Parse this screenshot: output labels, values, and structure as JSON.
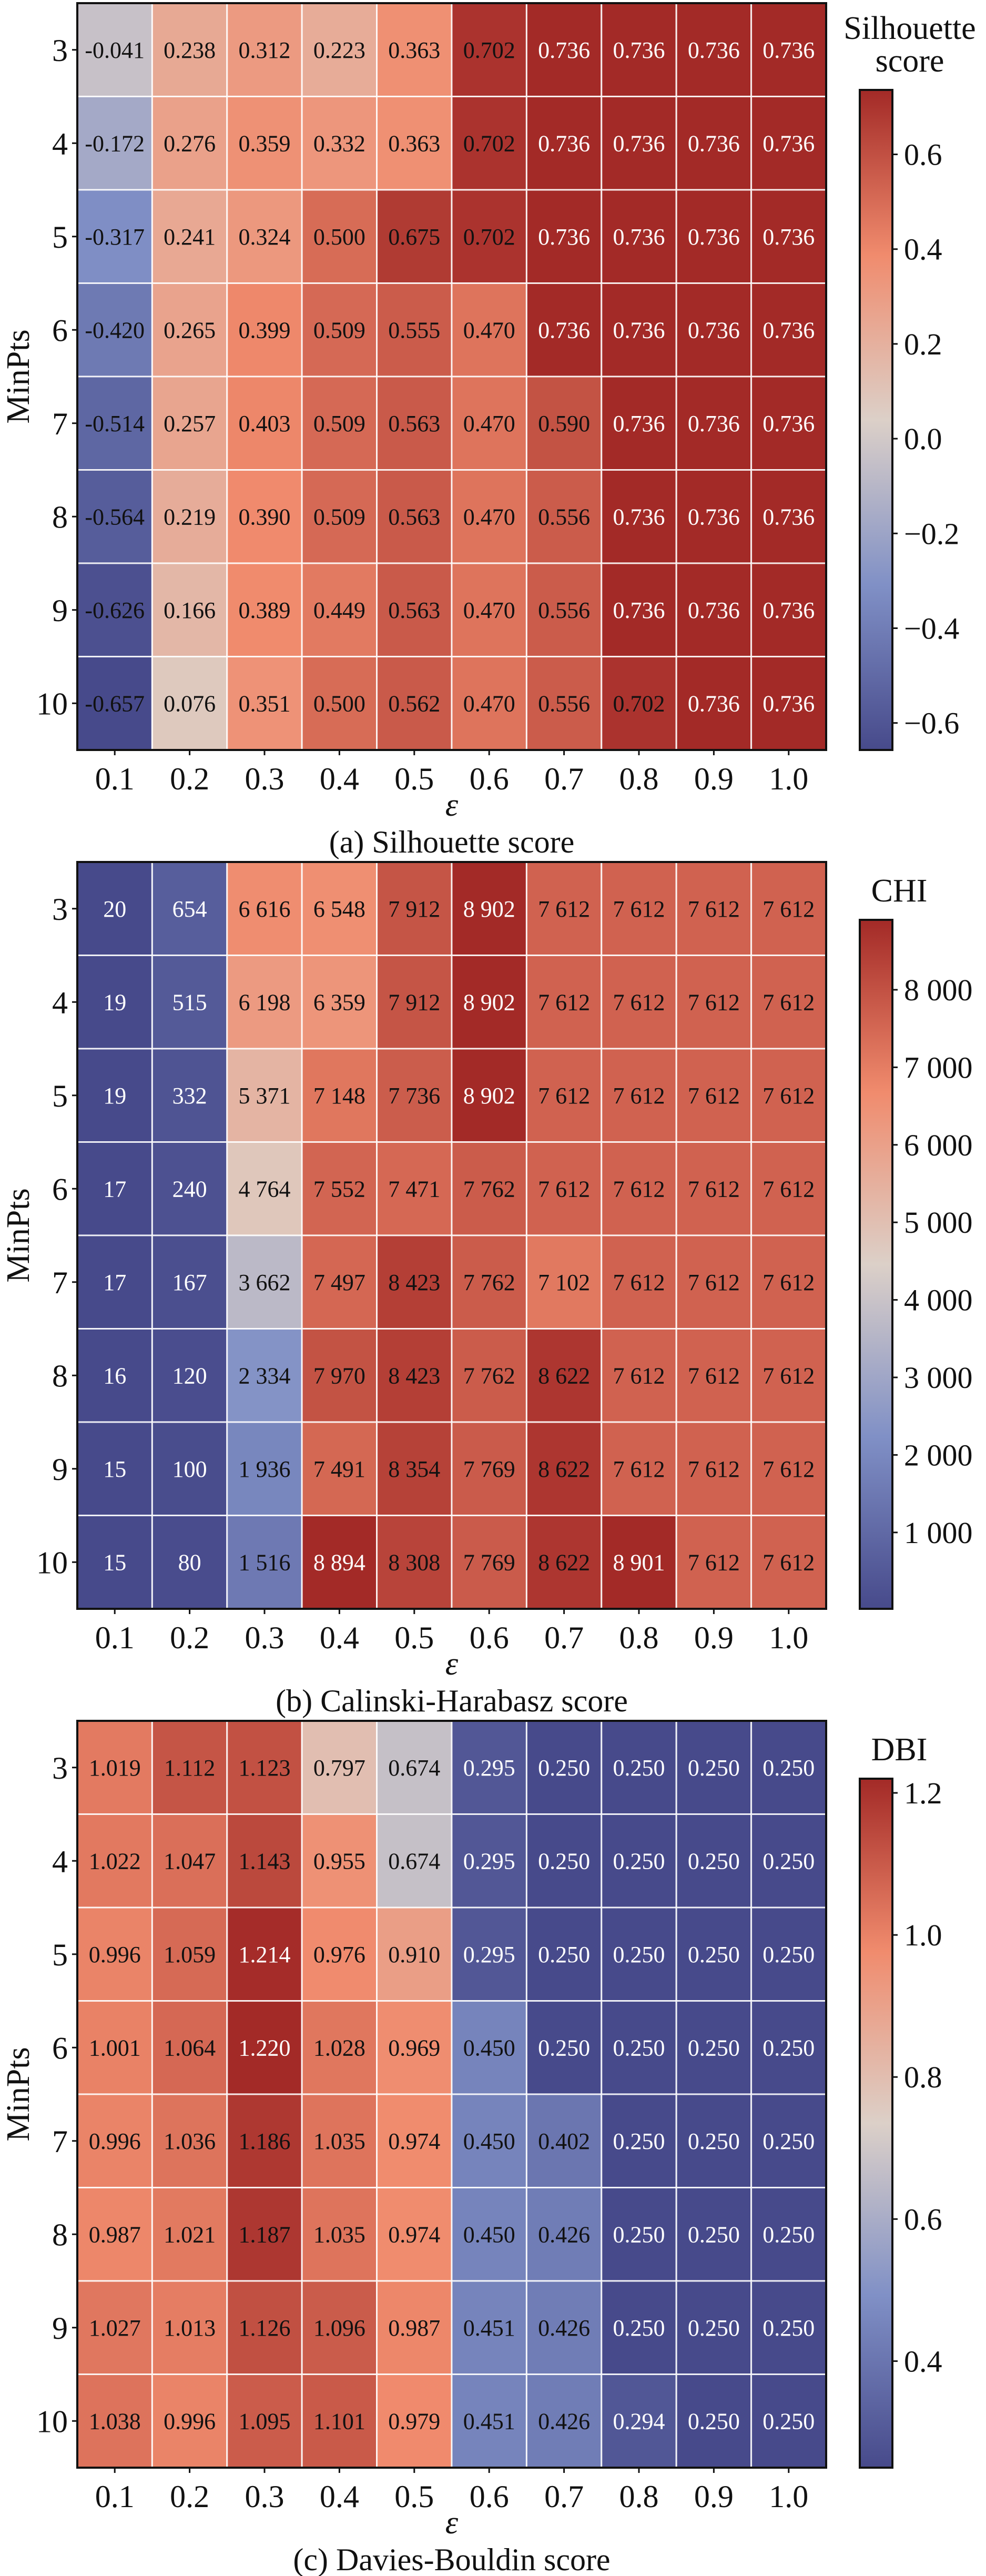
{
  "chart_data": [
    {
      "type": "heatmap",
      "caption": "(a) Silhouette score",
      "xlabel": "ε",
      "ylabel": "MinPts",
      "colorbar_label": [
        "Silhouette",
        "score"
      ],
      "x": [
        "0.1",
        "0.2",
        "0.3",
        "0.4",
        "0.5",
        "0.6",
        "0.7",
        "0.8",
        "0.9",
        "1.0"
      ],
      "y": [
        "3",
        "4",
        "5",
        "6",
        "7",
        "8",
        "9",
        "10"
      ],
      "values": [
        [
          -0.041,
          0.238,
          0.312,
          0.223,
          0.363,
          0.702,
          0.736,
          0.736,
          0.736,
          0.736
        ],
        [
          -0.172,
          0.276,
          0.359,
          0.332,
          0.363,
          0.702,
          0.736,
          0.736,
          0.736,
          0.736
        ],
        [
          -0.317,
          0.241,
          0.324,
          0.5,
          0.675,
          0.702,
          0.736,
          0.736,
          0.736,
          0.736
        ],
        [
          -0.42,
          0.265,
          0.399,
          0.509,
          0.555,
          0.47,
          0.736,
          0.736,
          0.736,
          0.736
        ],
        [
          -0.514,
          0.257,
          0.403,
          0.509,
          0.563,
          0.47,
          0.59,
          0.736,
          0.736,
          0.736
        ],
        [
          -0.564,
          0.219,
          0.39,
          0.509,
          0.563,
          0.47,
          0.556,
          0.736,
          0.736,
          0.736
        ],
        [
          -0.626,
          0.166,
          0.389,
          0.449,
          0.563,
          0.47,
          0.556,
          0.736,
          0.736,
          0.736
        ],
        [
          -0.657,
          0.076,
          0.351,
          0.5,
          0.562,
          0.47,
          0.556,
          0.702,
          0.736,
          0.736
        ]
      ],
      "labels": [
        [
          "-0.041",
          "0.238",
          "0.312",
          "0.223",
          "0.363",
          "0.702",
          "0.736",
          "0.736",
          "0.736",
          "0.736"
        ],
        [
          "-0.172",
          "0.276",
          "0.359",
          "0.332",
          "0.363",
          "0.702",
          "0.736",
          "0.736",
          "0.736",
          "0.736"
        ],
        [
          "-0.317",
          "0.241",
          "0.324",
          "0.500",
          "0.675",
          "0.702",
          "0.736",
          "0.736",
          "0.736",
          "0.736"
        ],
        [
          "-0.420",
          "0.265",
          "0.399",
          "0.509",
          "0.555",
          "0.470",
          "0.736",
          "0.736",
          "0.736",
          "0.736"
        ],
        [
          "-0.514",
          "0.257",
          "0.403",
          "0.509",
          "0.563",
          "0.470",
          "0.590",
          "0.736",
          "0.736",
          "0.736"
        ],
        [
          "-0.564",
          "0.219",
          "0.390",
          "0.509",
          "0.563",
          "0.470",
          "0.556",
          "0.736",
          "0.736",
          "0.736"
        ],
        [
          "-0.626",
          "0.166",
          "0.389",
          "0.449",
          "0.563",
          "0.470",
          "0.556",
          "0.736",
          "0.736",
          "0.736"
        ],
        [
          "-0.657",
          "0.076",
          "0.351",
          "0.500",
          "0.562",
          "0.470",
          "0.556",
          "0.702",
          "0.736",
          "0.736"
        ]
      ],
      "vlim": [
        -0.657,
        0.736
      ],
      "colorbar_ticks": [
        -0.6,
        -0.4,
        -0.2,
        0.0,
        0.2,
        0.4,
        0.6
      ],
      "colorbar_tick_labels": [
        "−0.6",
        "−0.4",
        "−0.2",
        "0.0",
        "0.2",
        "0.4",
        "0.6"
      ]
    },
    {
      "type": "heatmap",
      "caption": "(b) Calinski-Harabasz score",
      "xlabel": "ε",
      "ylabel": "MinPts",
      "colorbar_label": [
        "CHI"
      ],
      "x": [
        "0.1",
        "0.2",
        "0.3",
        "0.4",
        "0.5",
        "0.6",
        "0.7",
        "0.8",
        "0.9",
        "1.0"
      ],
      "y": [
        "3",
        "4",
        "5",
        "6",
        "7",
        "8",
        "9",
        "10"
      ],
      "values": [
        [
          20,
          654,
          6616,
          6548,
          7912,
          8902,
          7612,
          7612,
          7612,
          7612
        ],
        [
          19,
          515,
          6198,
          6359,
          7912,
          8902,
          7612,
          7612,
          7612,
          7612
        ],
        [
          19,
          332,
          5371,
          7148,
          7736,
          8902,
          7612,
          7612,
          7612,
          7612
        ],
        [
          17,
          240,
          4764,
          7552,
          7471,
          7762,
          7612,
          7612,
          7612,
          7612
        ],
        [
          17,
          167,
          3662,
          7497,
          8423,
          7762,
          7102,
          7612,
          7612,
          7612
        ],
        [
          16,
          120,
          2334,
          7970,
          8423,
          7762,
          8622,
          7612,
          7612,
          7612
        ],
        [
          15,
          100,
          1936,
          7491,
          8354,
          7769,
          8622,
          7612,
          7612,
          7612
        ],
        [
          15,
          80,
          1516,
          8894,
          8308,
          7769,
          8622,
          8901,
          7612,
          7612
        ]
      ],
      "labels": [
        [
          "20",
          "654",
          "6 616",
          "6 548",
          "7 912",
          "8 902",
          "7 612",
          "7 612",
          "7 612",
          "7 612"
        ],
        [
          "19",
          "515",
          "6 198",
          "6 359",
          "7 912",
          "8 902",
          "7 612",
          "7 612",
          "7 612",
          "7 612"
        ],
        [
          "19",
          "332",
          "5 371",
          "7 148",
          "7 736",
          "8 902",
          "7 612",
          "7 612",
          "7 612",
          "7 612"
        ],
        [
          "17",
          "240",
          "4 764",
          "7 552",
          "7 471",
          "7 762",
          "7 612",
          "7 612",
          "7 612",
          "7 612"
        ],
        [
          "17",
          "167",
          "3 662",
          "7 497",
          "8 423",
          "7 762",
          "7 102",
          "7 612",
          "7 612",
          "7 612"
        ],
        [
          "16",
          "120",
          "2 334",
          "7 970",
          "8 423",
          "7 762",
          "8 622",
          "7 612",
          "7 612",
          "7 612"
        ],
        [
          "15",
          "100",
          "1 936",
          "7 491",
          "8 354",
          "7 769",
          "8 622",
          "7 612",
          "7 612",
          "7 612"
        ],
        [
          "15",
          "80",
          "1 516",
          "8 894",
          "8 308",
          "7 769",
          "8 622",
          "8 901",
          "7 612",
          "7 612"
        ]
      ],
      "vlim": [
        15,
        8902
      ],
      "colorbar_ticks": [
        1000,
        2000,
        3000,
        4000,
        5000,
        6000,
        7000,
        8000
      ],
      "colorbar_tick_labels": [
        "1 000",
        "2 000",
        "3 000",
        "4 000",
        "5 000",
        "6 000",
        "7 000",
        "8 000"
      ]
    },
    {
      "type": "heatmap",
      "caption": "(c) Davies-Bouldin score",
      "xlabel": "ε",
      "ylabel": "MinPts",
      "colorbar_label": [
        "DBI"
      ],
      "x": [
        "0.1",
        "0.2",
        "0.3",
        "0.4",
        "0.5",
        "0.6",
        "0.7",
        "0.8",
        "0.9",
        "1.0"
      ],
      "y": [
        "3",
        "4",
        "5",
        "6",
        "7",
        "8",
        "9",
        "10"
      ],
      "values": [
        [
          1.019,
          1.112,
          1.123,
          0.797,
          0.674,
          0.295,
          0.25,
          0.25,
          0.25,
          0.25
        ],
        [
          1.022,
          1.047,
          1.143,
          0.955,
          0.674,
          0.295,
          0.25,
          0.25,
          0.25,
          0.25
        ],
        [
          0.996,
          1.059,
          1.214,
          0.976,
          0.91,
          0.295,
          0.25,
          0.25,
          0.25,
          0.25
        ],
        [
          1.001,
          1.064,
          1.22,
          1.028,
          0.969,
          0.45,
          0.25,
          0.25,
          0.25,
          0.25
        ],
        [
          0.996,
          1.036,
          1.186,
          1.035,
          0.974,
          0.45,
          0.402,
          0.25,
          0.25,
          0.25
        ],
        [
          0.987,
          1.021,
          1.187,
          1.035,
          0.974,
          0.45,
          0.426,
          0.25,
          0.25,
          0.25
        ],
        [
          1.027,
          1.013,
          1.126,
          1.096,
          0.987,
          0.451,
          0.426,
          0.25,
          0.25,
          0.25
        ],
        [
          1.038,
          0.996,
          1.095,
          1.101,
          0.979,
          0.451,
          0.426,
          0.294,
          0.25,
          0.25
        ]
      ],
      "labels": [
        [
          "1.019",
          "1.112",
          "1.123",
          "0.797",
          "0.674",
          "0.295",
          "0.250",
          "0.250",
          "0.250",
          "0.250"
        ],
        [
          "1.022",
          "1.047",
          "1.143",
          "0.955",
          "0.674",
          "0.295",
          "0.250",
          "0.250",
          "0.250",
          "0.250"
        ],
        [
          "0.996",
          "1.059",
          "1.214",
          "0.976",
          "0.910",
          "0.295",
          "0.250",
          "0.250",
          "0.250",
          "0.250"
        ],
        [
          "1.001",
          "1.064",
          "1.220",
          "1.028",
          "0.969",
          "0.450",
          "0.250",
          "0.250",
          "0.250",
          "0.250"
        ],
        [
          "0.996",
          "1.036",
          "1.186",
          "1.035",
          "0.974",
          "0.450",
          "0.402",
          "0.250",
          "0.250",
          "0.250"
        ],
        [
          "0.987",
          "1.021",
          "1.187",
          "1.035",
          "0.974",
          "0.450",
          "0.426",
          "0.250",
          "0.250",
          "0.250"
        ],
        [
          "1.027",
          "1.013",
          "1.126",
          "1.096",
          "0.987",
          "0.451",
          "0.426",
          "0.250",
          "0.250",
          "0.250"
        ],
        [
          "1.038",
          "0.996",
          "1.095",
          "1.101",
          "0.979",
          "0.451",
          "0.426",
          "0.294",
          "0.250",
          "0.250"
        ]
      ],
      "vlim": [
        0.25,
        1.22
      ],
      "colorbar_ticks": [
        0.4,
        0.6,
        0.8,
        1.0,
        1.2
      ],
      "colorbar_tick_labels": [
        "0.4",
        "0.6",
        "0.8",
        "1.0",
        "1.2"
      ]
    }
  ],
  "colormap": [
    "#474a8b",
    "#8090c6",
    "#dcd0c8",
    "#f08b6d",
    "#a32a27"
  ]
}
